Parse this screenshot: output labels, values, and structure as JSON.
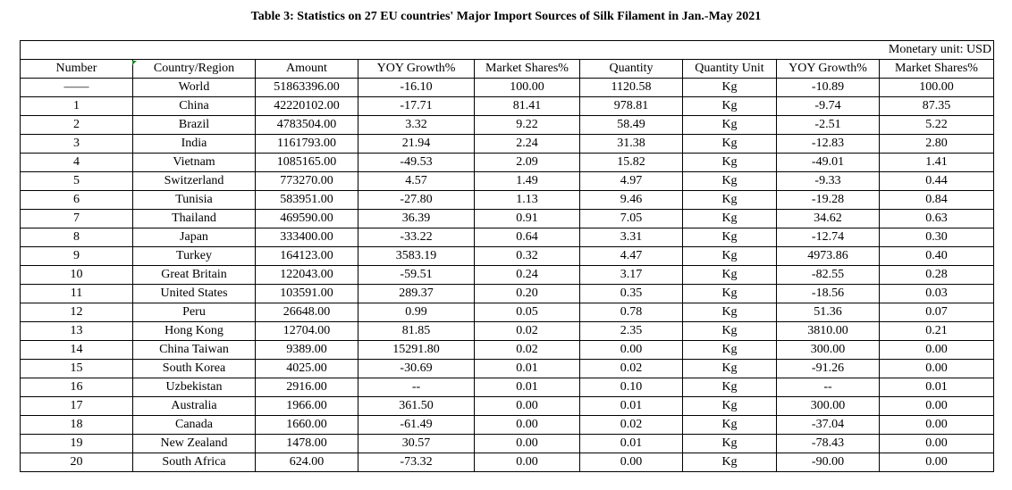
{
  "title": "Table 3: Statistics on 27 EU countries' Major Import Sources of Silk Filament in Jan.-May 2021",
  "monetary_unit": "Monetary unit: USD",
  "headers": [
    "Number",
    "Country/Region",
    "Amount",
    "YOY Growth%",
    "Market Shares%",
    "Quantity",
    "Quantity Unit",
    "YOY Growth%",
    "Market Shares%"
  ],
  "rows": [
    [
      "——",
      "World",
      "51863396.00",
      "-16.10",
      "100.00",
      "1120.58",
      "Kg",
      "-10.89",
      "100.00"
    ],
    [
      "1",
      "China",
      "42220102.00",
      "-17.71",
      "81.41",
      "978.81",
      "Kg",
      "-9.74",
      "87.35"
    ],
    [
      "2",
      "Brazil",
      "4783504.00",
      "3.32",
      "9.22",
      "58.49",
      "Kg",
      "-2.51",
      "5.22"
    ],
    [
      "3",
      "India",
      "1161793.00",
      "21.94",
      "2.24",
      "31.38",
      "Kg",
      "-12.83",
      "2.80"
    ],
    [
      "4",
      "Vietnam",
      "1085165.00",
      "-49.53",
      "2.09",
      "15.82",
      "Kg",
      "-49.01",
      "1.41"
    ],
    [
      "5",
      "Switzerland",
      "773270.00",
      "4.57",
      "1.49",
      "4.97",
      "Kg",
      "-9.33",
      "0.44"
    ],
    [
      "6",
      "Tunisia",
      "583951.00",
      "-27.80",
      "1.13",
      "9.46",
      "Kg",
      "-19.28",
      "0.84"
    ],
    [
      "7",
      "Thailand",
      "469590.00",
      "36.39",
      "0.91",
      "7.05",
      "Kg",
      "34.62",
      "0.63"
    ],
    [
      "8",
      "Japan",
      "333400.00",
      "-33.22",
      "0.64",
      "3.31",
      "Kg",
      "-12.74",
      "0.30"
    ],
    [
      "9",
      "Turkey",
      "164123.00",
      "3583.19",
      "0.32",
      "4.47",
      "Kg",
      "4973.86",
      "0.40"
    ],
    [
      "10",
      "Great Britain",
      "122043.00",
      "-59.51",
      "0.24",
      "3.17",
      "Kg",
      "-82.55",
      "0.28"
    ],
    [
      "11",
      "United States",
      "103591.00",
      "289.37",
      "0.20",
      "0.35",
      "Kg",
      "-18.56",
      "0.03"
    ],
    [
      "12",
      "Peru",
      "26648.00",
      "0.99",
      "0.05",
      "0.78",
      "Kg",
      "51.36",
      "0.07"
    ],
    [
      "13",
      "Hong Kong",
      "12704.00",
      "81.85",
      "0.02",
      "2.35",
      "Kg",
      "3810.00",
      "0.21"
    ],
    [
      "14",
      "China Taiwan",
      "9389.00",
      "15291.80",
      "0.02",
      "0.00",
      "Kg",
      "300.00",
      "0.00"
    ],
    [
      "15",
      "South Korea",
      "4025.00",
      "-30.69",
      "0.01",
      "0.02",
      "Kg",
      "-91.26",
      "0.00"
    ],
    [
      "16",
      "Uzbekistan",
      "2916.00",
      "--",
      "0.01",
      "0.10",
      "Kg",
      "--",
      "0.01"
    ],
    [
      "17",
      "Australia",
      "1966.00",
      "361.50",
      "0.00",
      "0.01",
      "Kg",
      "300.00",
      "0.00"
    ],
    [
      "18",
      "Canada",
      "1660.00",
      "-61.49",
      "0.00",
      "0.02",
      "Kg",
      "-37.04",
      "0.00"
    ],
    [
      "19",
      "New Zealand",
      "1478.00",
      "30.57",
      "0.00",
      "0.01",
      "Kg",
      "-78.43",
      "0.00"
    ],
    [
      "20",
      "South Africa",
      "624.00",
      "-73.32",
      "0.00",
      "0.00",
      "Kg",
      "-90.00",
      "0.00"
    ]
  ]
}
